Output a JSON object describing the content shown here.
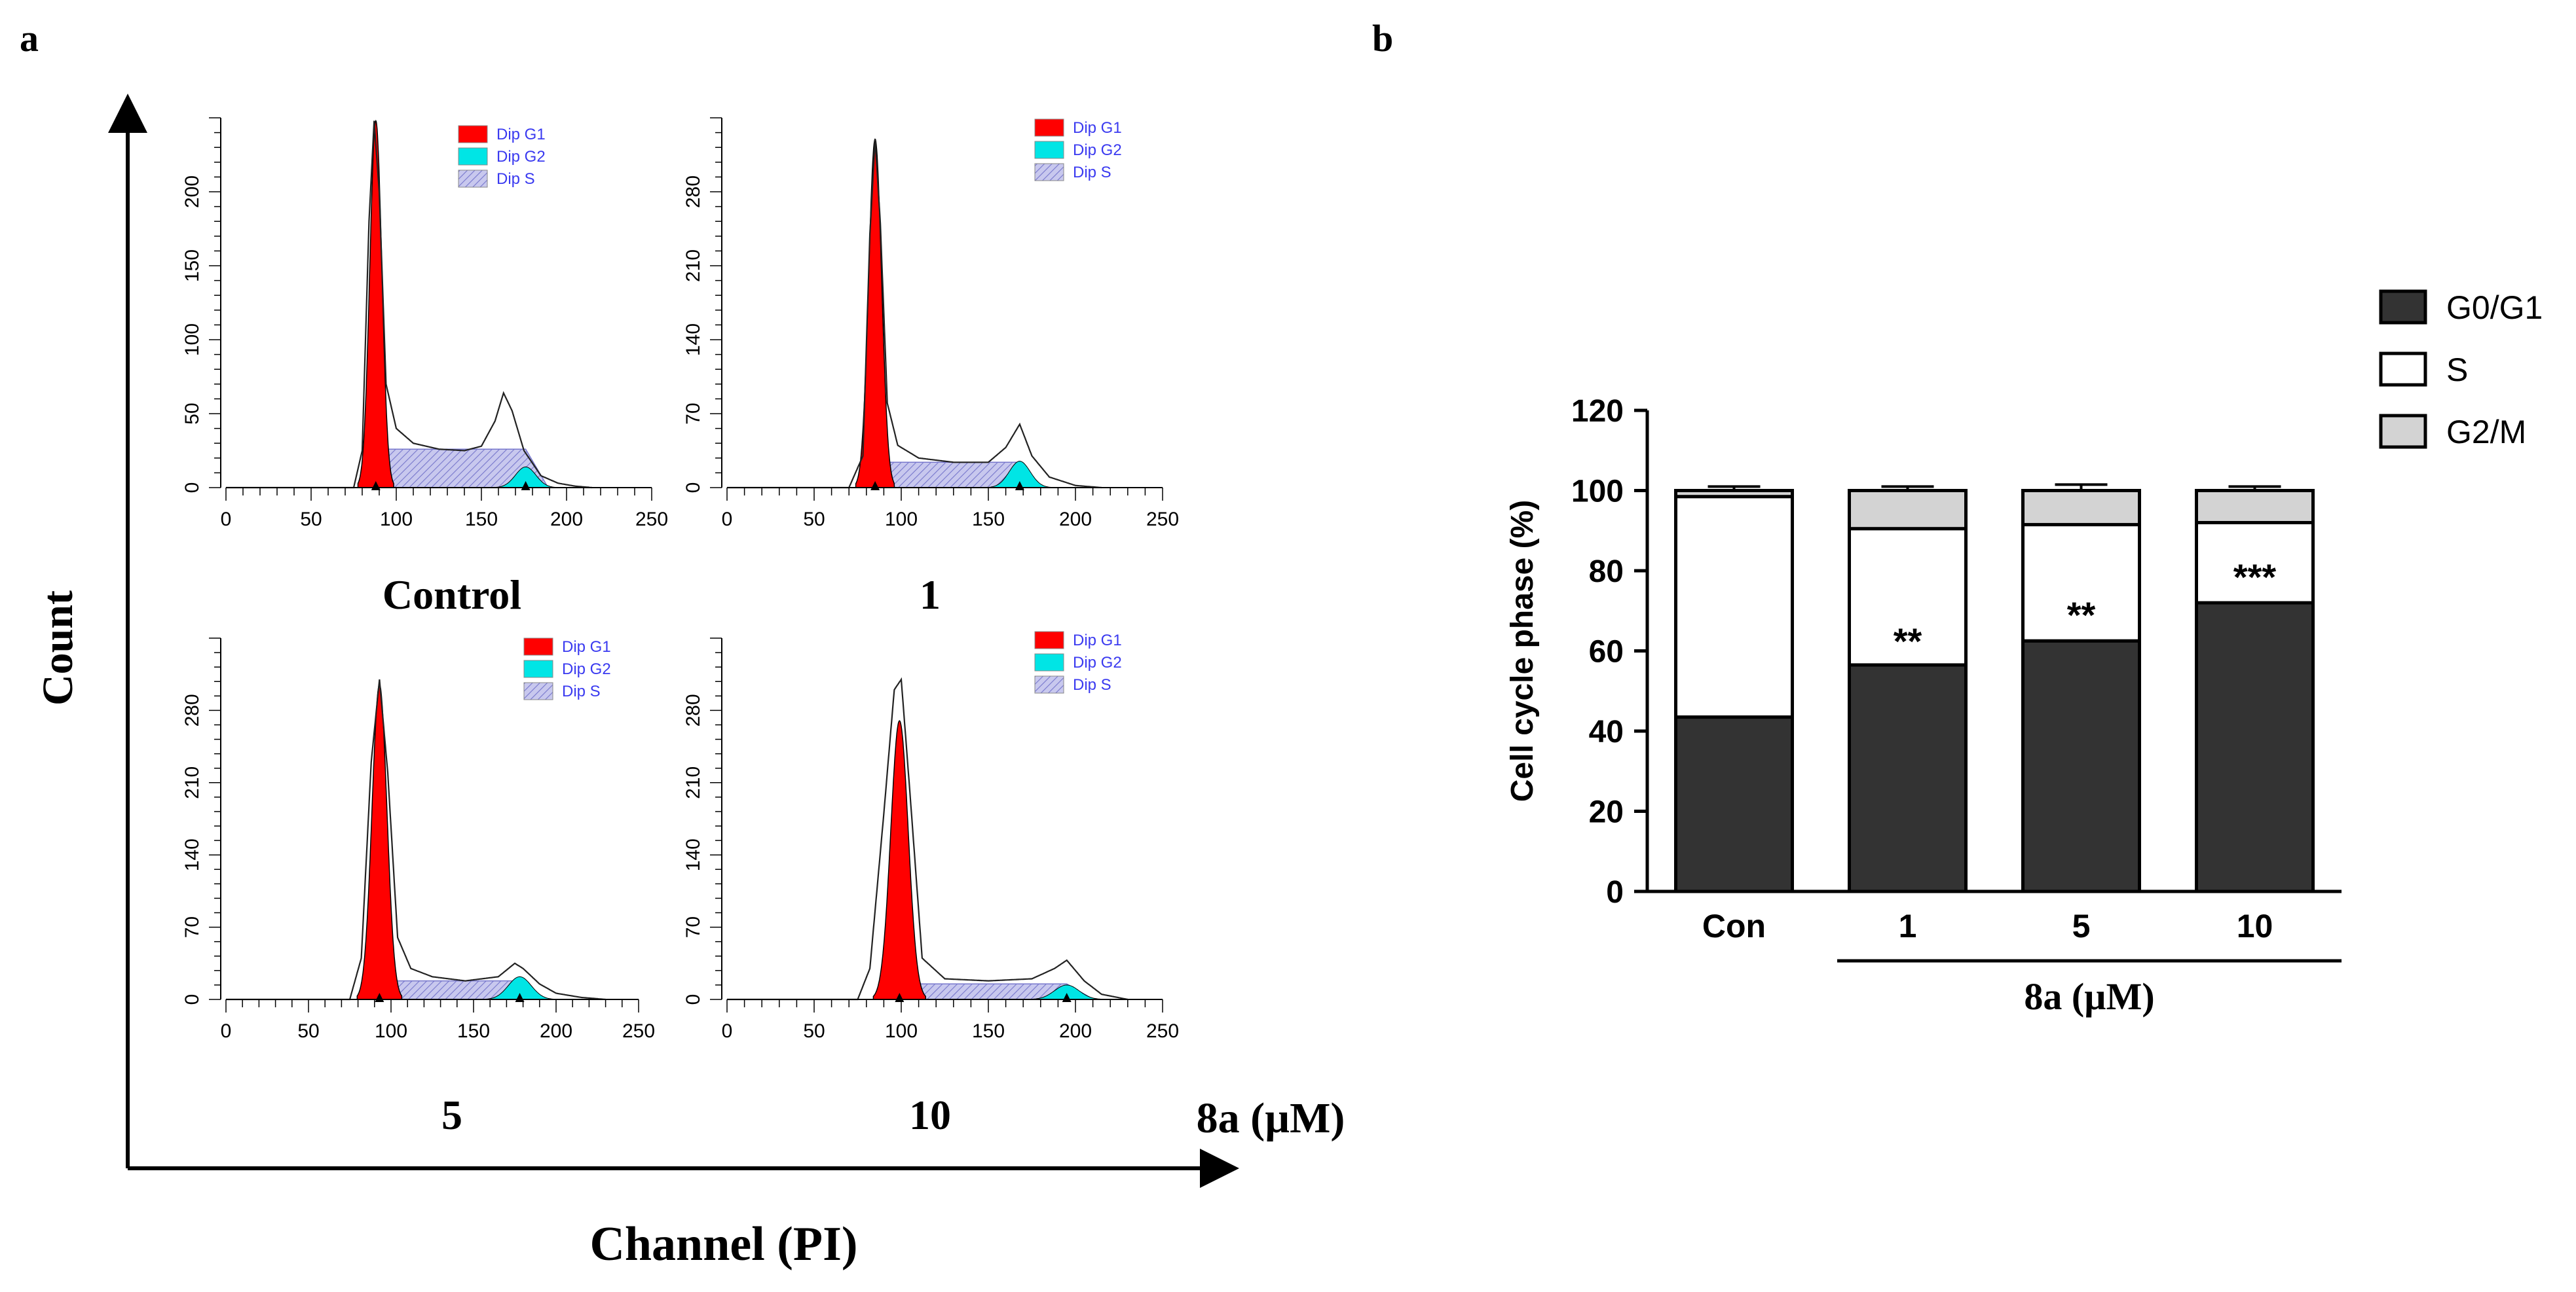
{
  "panel_a": {
    "letter": "a",
    "y_title": "Count",
    "x_title": "Channel (PI)",
    "unit_label": "8a (µM)",
    "legend": [
      "Dip G1",
      "Dip G2",
      "Dip S"
    ],
    "colors": {
      "g1": "#ff0000",
      "g2": "#00e5e5",
      "s": "#c8c8ee",
      "s_hatch": "#7777cc",
      "legend_text": "#3a3af0"
    }
  },
  "panel_b": {
    "letter": "b",
    "colors": {
      "G0/G1": "#333333",
      "S": "#ffffff",
      "G2/M": "#d3d3d3"
    }
  },
  "chart_data": [
    {
      "type": "area",
      "label": "Control",
      "x": [
        0,
        75,
        80,
        84,
        87,
        90,
        94,
        100,
        110,
        125,
        140,
        150,
        158,
        163,
        168,
        175,
        185,
        195,
        205,
        215
      ],
      "y": [
        0,
        0,
        25,
        180,
        248,
        200,
        70,
        40,
        30,
        26,
        25,
        28,
        45,
        64,
        52,
        25,
        8,
        3,
        1,
        0
      ],
      "peaks": {
        "g1": {
          "mu": 88,
          "sigma": 3.5,
          "amp": 248
        },
        "g2": {
          "mu": 176,
          "sigma": 6,
          "amp": 14
        },
        "s_level": 26
      },
      "xlim": [
        0,
        250
      ],
      "ylim": [
        0,
        250
      ],
      "xticks": [
        0,
        50,
        100,
        150,
        200,
        250
      ],
      "yticks": [
        0,
        50,
        100,
        150,
        200
      ]
    },
    {
      "type": "area",
      "label": "1",
      "x": [
        0,
        70,
        78,
        82,
        85,
        88,
        92,
        98,
        110,
        130,
        150,
        160,
        168,
        175,
        185,
        200,
        215
      ],
      "y": [
        0,
        0,
        30,
        240,
        330,
        250,
        80,
        40,
        28,
        24,
        24,
        38,
        60,
        30,
        10,
        2,
        0
      ],
      "peaks": {
        "g1": {
          "mu": 85,
          "sigma": 3.7,
          "amp": 330
        },
        "g2": {
          "mu": 168,
          "sigma": 6,
          "amp": 25
        },
        "s_level": 24
      },
      "xlim": [
        0,
        250
      ],
      "ylim": [
        0,
        350
      ],
      "xticks": [
        0,
        50,
        100,
        150,
        200,
        250
      ],
      "yticks": [
        0,
        70,
        140,
        210,
        280
      ]
    },
    {
      "type": "area",
      "label": "5",
      "x": [
        0,
        75,
        82,
        88,
        93,
        98,
        104,
        112,
        125,
        145,
        165,
        175,
        180,
        190,
        200,
        215,
        230
      ],
      "y": [
        0,
        0,
        40,
        230,
        310,
        220,
        60,
        30,
        22,
        18,
        22,
        35,
        30,
        15,
        6,
        2,
        0
      ],
      "peaks": {
        "g1": {
          "mu": 93,
          "sigma": 4.5,
          "amp": 305
        },
        "g2": {
          "mu": 178,
          "sigma": 7,
          "amp": 22
        },
        "s_level": 18
      },
      "xlim": [
        0,
        250
      ],
      "ylim": [
        0,
        350
      ],
      "xticks": [
        0,
        50,
        100,
        150,
        200,
        250
      ],
      "yticks": [
        0,
        70,
        140,
        210,
        280
      ]
    },
    {
      "type": "area",
      "label": "10",
      "x": [
        0,
        75,
        82,
        90,
        96,
        100,
        105,
        112,
        125,
        150,
        175,
        188,
        195,
        205,
        215,
        230
      ],
      "y": [
        0,
        0,
        30,
        180,
        300,
        310,
        200,
        40,
        20,
        18,
        20,
        30,
        38,
        18,
        5,
        0
      ],
      "peaks": {
        "g1": {
          "mu": 99,
          "sigma": 5,
          "amp": 270
        },
        "g2": {
          "mu": 195,
          "sigma": 7,
          "amp": 14
        },
        "s_level": 15
      },
      "xlim": [
        0,
        250
      ],
      "ylim": [
        0,
        350
      ],
      "xticks": [
        0,
        50,
        100,
        150,
        200,
        250
      ],
      "yticks": [
        0,
        70,
        140,
        210,
        280
      ]
    },
    {
      "type": "bar",
      "stacked": true,
      "categories": [
        "Con",
        "1",
        "5",
        "10"
      ],
      "series": [
        {
          "name": "G0/G1",
          "values": [
            43.5,
            56.5,
            62.5,
            72.0
          ],
          "errors": [
            1.5,
            1.5,
            2.0,
            2.0
          ]
        },
        {
          "name": "S",
          "values": [
            55.0,
            34.0,
            29.0,
            20.0
          ],
          "errors": [
            1.0,
            1.0,
            1.0,
            1.5
          ]
        },
        {
          "name": "G2/M",
          "values": [
            1.5,
            9.5,
            8.5,
            8.0
          ],
          "errors": [
            1.0,
            1.0,
            1.5,
            1.0
          ]
        }
      ],
      "significance": [
        "",
        "**",
        "**",
        "***"
      ],
      "ylabel": "Cell cycle phase (%)",
      "group_label": "8a (µM)",
      "ylim": [
        0,
        120
      ],
      "yticks": [
        0,
        20,
        40,
        60,
        80,
        100,
        120
      ]
    }
  ]
}
